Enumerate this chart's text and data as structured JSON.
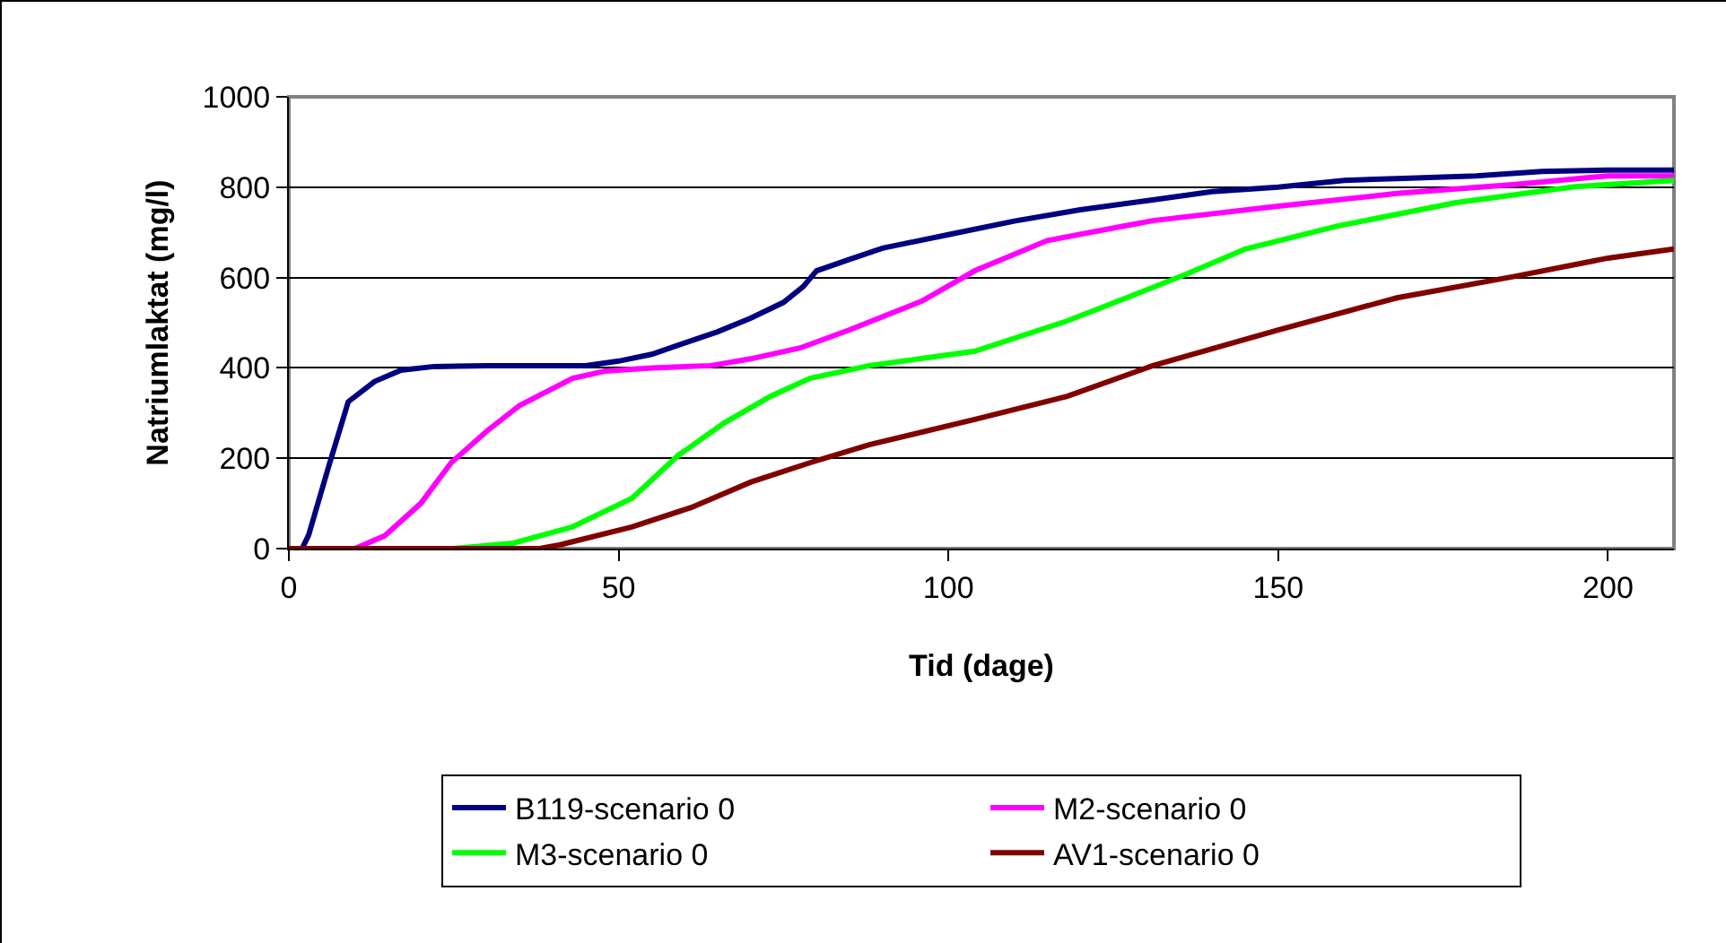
{
  "chart_data": {
    "type": "line",
    "xlabel": "Tid (dage)",
    "ylabel": "Natriumlaktat (mg/l)",
    "xlim": [
      0,
      210
    ],
    "xticks": [
      0,
      50,
      100,
      150,
      200
    ],
    "ylim": [
      0,
      1000
    ],
    "yticks": [
      0,
      200,
      400,
      600,
      800,
      1000
    ],
    "grid": "y",
    "legend": "bottom",
    "marker": "none",
    "line_style": "solid",
    "series": [
      {
        "name": "B119-scenario 0",
        "color": "#000080",
        "x": [
          0,
          2,
          3,
          6,
          9,
          13,
          17,
          22,
          30,
          45,
          50,
          55,
          60,
          65,
          70,
          75,
          78,
          80,
          85,
          90,
          100,
          110,
          120,
          130,
          140,
          150,
          160,
          170,
          180,
          190,
          200,
          210
        ],
        "values": [
          0,
          0,
          30,
          180,
          325,
          370,
          395,
          403,
          405,
          405,
          415,
          430,
          455,
          480,
          510,
          545,
          580,
          615,
          640,
          665,
          695,
          725,
          750,
          770,
          790,
          800,
          815,
          820,
          825,
          835,
          838,
          838
        ]
      },
      {
        "name": "M2-scenario 0",
        "color": "#ff00ff",
        "x": [
          0,
          10,
          14.5,
          20,
          24.6,
          30,
          35,
          43,
          48,
          55,
          64,
          70,
          77.5,
          85,
          96,
          104,
          115,
          131,
          150,
          168,
          186,
          200,
          210
        ],
        "values": [
          0,
          0,
          28,
          100,
          190,
          260,
          317,
          377,
          393,
          400,
          405,
          420,
          444,
          484,
          548,
          615,
          682,
          726,
          758,
          786,
          806,
          825,
          825
        ]
      },
      {
        "name": "M3-scenario 0",
        "color": "#00ff00",
        "x": [
          0,
          25,
          34,
          43,
          52,
          59,
          66,
          73,
          79,
          88,
          104,
          118,
          127,
          136,
          145,
          159,
          177,
          195,
          210
        ],
        "values": [
          0,
          0,
          12,
          48,
          111,
          206,
          278,
          337,
          377,
          405,
          437,
          504,
          555,
          607,
          663,
          714,
          766,
          801,
          815
        ]
      },
      {
        "name": "AV1-scenario 0",
        "color": "#800000",
        "x": [
          0,
          38,
          41,
          52,
          61,
          70,
          79,
          88,
          104,
          118,
          131,
          150,
          168,
          186,
          200,
          210
        ],
        "values": [
          0,
          0,
          8,
          48,
          91,
          147,
          190,
          230,
          286,
          337,
          405,
          484,
          555,
          603,
          643,
          663
        ]
      }
    ]
  }
}
